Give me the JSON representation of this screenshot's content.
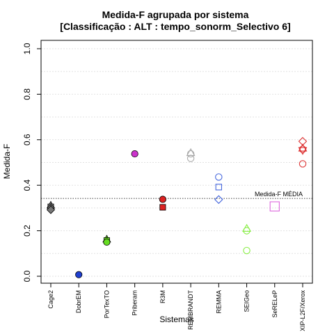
{
  "chart_data": {
    "type": "scatter",
    "title": "Medida-F agrupada por sistema",
    "subtitle": "[Classificação : ALT : tempo_sonorm_Selectivo 6]",
    "xlabel": "Sistemas",
    "ylabel": "Medida-F",
    "ylim": [
      0,
      1
    ],
    "yticks": [
      "0.0",
      "0.2",
      "0.4",
      "0.6",
      "0.8",
      "1.0"
    ],
    "grid": true,
    "categories": [
      "Cage2",
      "DobrEM",
      "PorTexTO",
      "Priberam",
      "R3M",
      "REMBRANDT",
      "REMMA",
      "SEIGeo",
      "SeRELeP",
      "XIP-L2F/Xerox"
    ],
    "colors": {
      "Cage2": "#777777",
      "DobrEM": "#1f3fd0",
      "PorTexTO": "#66dd22",
      "Priberam": "#cc33cc",
      "R3M": "#dd2222",
      "REMBRANDT": "#aaaaaa",
      "REMMA": "#4466dd",
      "SEIGeo": "#88ee44",
      "SeRELeP": "#dd66dd",
      "XIP-L2F/Xerox": "#dd3333"
    },
    "points": [
      {
        "category": "Cage2",
        "y": 0.312,
        "shape": "triangle",
        "filled": true
      },
      {
        "category": "Cage2",
        "y": 0.305,
        "shape": "square",
        "filled": true
      },
      {
        "category": "Cage2",
        "y": 0.298,
        "shape": "circle",
        "filled": true
      },
      {
        "category": "Cage2",
        "y": 0.292,
        "shape": "diamond",
        "filled": true
      },
      {
        "category": "DobrEM",
        "y": 0.007,
        "shape": "circle",
        "filled": true
      },
      {
        "category": "PorTexTO",
        "y": 0.163,
        "shape": "triangle",
        "filled": true
      },
      {
        "category": "PorTexTO",
        "y": 0.157,
        "shape": "square",
        "filled": true
      },
      {
        "category": "PorTexTO",
        "y": 0.15,
        "shape": "circle",
        "filled": true
      },
      {
        "category": "Priberam",
        "y": 0.538,
        "shape": "circle",
        "filled": true
      },
      {
        "category": "R3M",
        "y": 0.338,
        "shape": "circle",
        "filled": true
      },
      {
        "category": "R3M",
        "y": 0.303,
        "shape": "square",
        "filled": true
      },
      {
        "category": "REMBRANDT",
        "y": 0.543,
        "shape": "triangle",
        "filled": false
      },
      {
        "category": "REMBRANDT",
        "y": 0.538,
        "shape": "circle",
        "filled": false
      },
      {
        "category": "REMBRANDT",
        "y": 0.518,
        "shape": "circle",
        "filled": false
      },
      {
        "category": "REMMA",
        "y": 0.436,
        "shape": "circle",
        "filled": false
      },
      {
        "category": "REMMA",
        "y": 0.392,
        "shape": "square",
        "filled": false
      },
      {
        "category": "REMMA",
        "y": 0.337,
        "shape": "diamond",
        "filled": false
      },
      {
        "category": "SEIGeo",
        "y": 0.21,
        "shape": "triangle",
        "filled": false
      },
      {
        "category": "SEIGeo",
        "y": 0.2,
        "shape": "circle",
        "filled": false
      },
      {
        "category": "SEIGeo",
        "y": 0.113,
        "shape": "circle",
        "filled": false
      },
      {
        "category": "SeRELeP",
        "y": 0.307,
        "shape": "square",
        "filled": false
      },
      {
        "category": "XIP-L2F/Xerox",
        "y": 0.593,
        "shape": "diamond",
        "filled": false
      },
      {
        "category": "XIP-L2F/Xerox",
        "y": 0.563,
        "shape": "triangle",
        "filled": false
      },
      {
        "category": "XIP-L2F/Xerox",
        "y": 0.553,
        "shape": "triangle-down",
        "filled": false
      },
      {
        "category": "XIP-L2F/Xerox",
        "y": 0.558,
        "shape": "circle",
        "filled": false
      },
      {
        "category": "XIP-L2F/Xerox",
        "y": 0.494,
        "shape": "circle",
        "filled": false
      }
    ],
    "reference_line": {
      "y": 0.342,
      "label": "Medida-F MÉDIA",
      "style": "dotted"
    }
  }
}
